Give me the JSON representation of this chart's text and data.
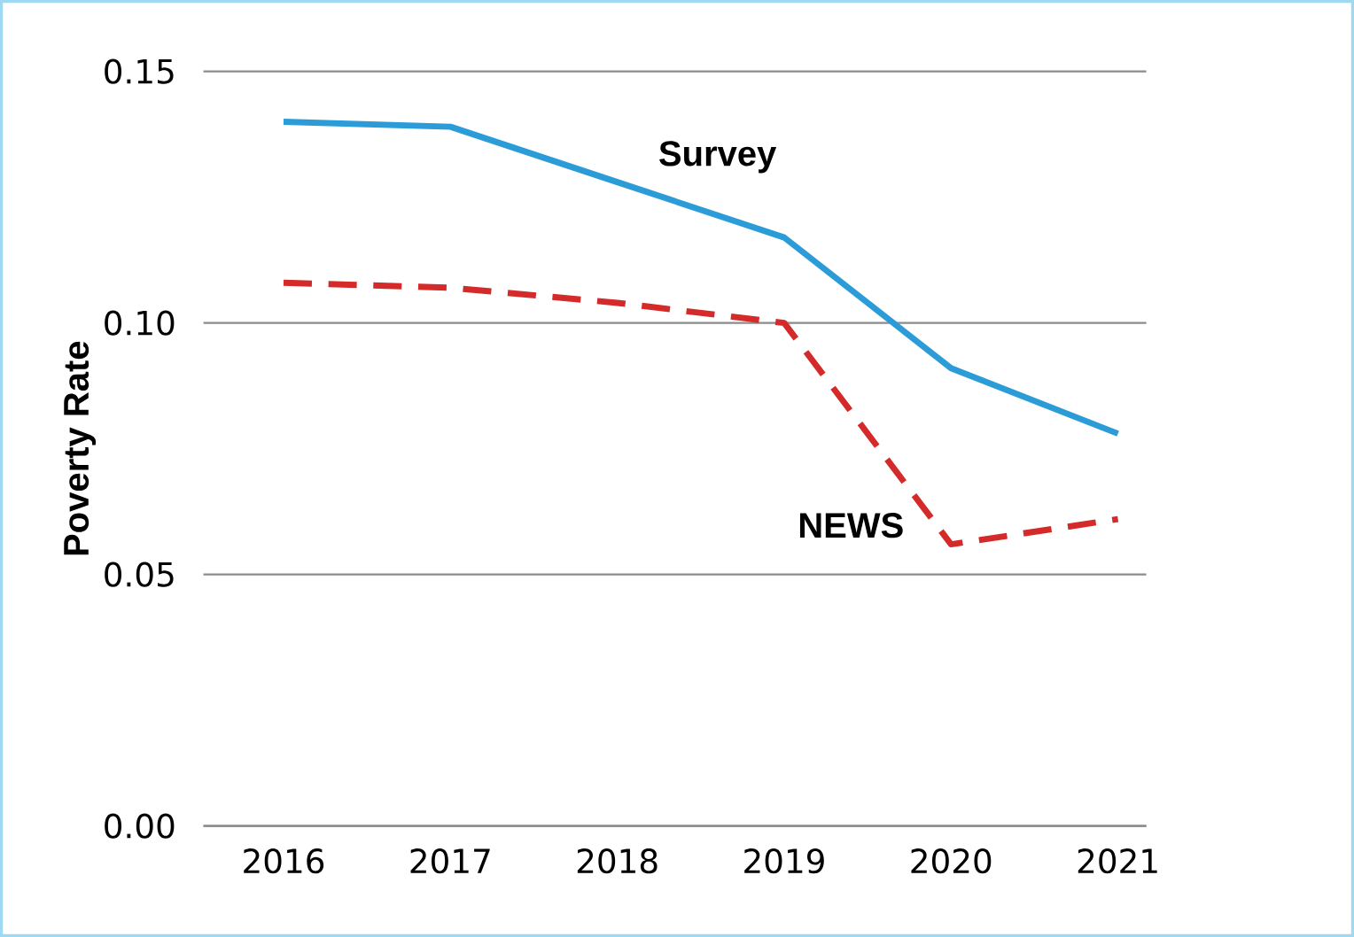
{
  "chart_data": {
    "type": "line",
    "ylabel": "Poverty Rate",
    "categories": [
      "2016",
      "2017",
      "2018",
      "2019",
      "2020",
      "2021"
    ],
    "series": [
      {
        "name": "Survey",
        "color": "#2b9cd8",
        "line_style": "solid",
        "values": [
          0.14,
          0.139,
          0.128,
          0.117,
          0.091,
          0.078
        ]
      },
      {
        "name": "NEWS",
        "color": "#d42a2a",
        "line_style": "dashed",
        "values": [
          0.108,
          0.107,
          0.104,
          0.1,
          0.056,
          0.061
        ]
      }
    ],
    "ylim": [
      0,
      0.15
    ],
    "yticks": [
      {
        "value": 0,
        "label": "0.00"
      },
      {
        "value": 0.05,
        "label": "0.05"
      },
      {
        "value": 0.1,
        "label": "0.10"
      },
      {
        "value": 0.15,
        "label": "0.15"
      }
    ],
    "grid": "y",
    "marker": "none"
  }
}
